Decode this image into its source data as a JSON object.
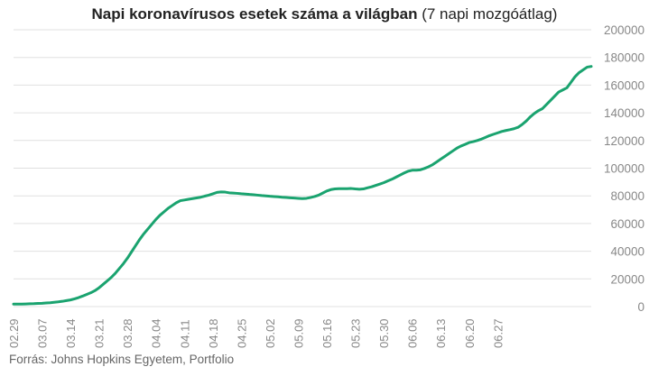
{
  "title": {
    "bold": "Napi koronavírusos esetek száma a világban",
    "normal": "(7 napi mozgóátlag)"
  },
  "source": "Forrás: Johns Hopkins Egyetem, Portfolio",
  "colors": {
    "line": "#1aa36f",
    "grid": "#e0e0e0",
    "tick": "#888888"
  },
  "chart_data": {
    "type": "line",
    "title": "Napi koronavírusos esetek száma a világban (7 napi mozgóátlag)",
    "x_tick_labels": [
      "02.29",
      "03.07",
      "03.14",
      "03.21",
      "03.28",
      "04.04",
      "04.11",
      "04.18",
      "04.25",
      "05.02",
      "05.09",
      "05.16",
      "05.23",
      "05.30",
      "06.06",
      "06.13",
      "06.20",
      "06.27"
    ],
    "y_tick_labels": [
      "0",
      "20000",
      "40000",
      "60000",
      "80000",
      "100000",
      "120000",
      "140000",
      "160000",
      "180000",
      "200000"
    ],
    "ylim": [
      0,
      200000
    ],
    "yticks": [
      0,
      20000,
      40000,
      60000,
      80000,
      100000,
      120000,
      140000,
      160000,
      180000,
      200000
    ],
    "grid": true,
    "legend": "none",
    "start_date": "02.29",
    "values": [
      1800,
      1800,
      1800,
      1900,
      2000,
      2100,
      2300,
      2400,
      2600,
      2800,
      3100,
      3400,
      3800,
      4300,
      4800,
      5600,
      6500,
      7600,
      8800,
      10000,
      11500,
      13500,
      16000,
      18500,
      21000,
      24000,
      27500,
      31000,
      35000,
      39500,
      44000,
      48500,
      52500,
      56000,
      59500,
      63000,
      66000,
      68500,
      71000,
      73000,
      75000,
      76500,
      77000,
      77500,
      78000,
      78500,
      79000,
      79800,
      80500,
      81500,
      82500,
      82800,
      82700,
      82200,
      82000,
      81800,
      81500,
      81300,
      81000,
      80800,
      80500,
      80200,
      80000,
      79700,
      79500,
      79300,
      79000,
      78800,
      78600,
      78400,
      78200,
      78000,
      78200,
      78800,
      79500,
      80500,
      82000,
      83500,
      84500,
      85000,
      85200,
      85200,
      85200,
      85300,
      85000,
      84800,
      85000,
      85800,
      86500,
      87500,
      88500,
      89500,
      90800,
      92000,
      93500,
      95000,
      96500,
      97800,
      98500,
      98500,
      98800,
      99800,
      101000,
      102500,
      104500,
      106500,
      108500,
      110500,
      112500,
      114500,
      116000,
      117200,
      118500,
      119200,
      120000,
      121000,
      122200,
      123500,
      124500,
      125500,
      126500,
      127200,
      127800,
      128500,
      129500,
      131500,
      134000,
      137000,
      139500,
      141500,
      143000,
      146000,
      149000,
      152000,
      155000,
      156500,
      158000,
      162000,
      166000,
      169000,
      171000,
      173000,
      173500
    ]
  }
}
